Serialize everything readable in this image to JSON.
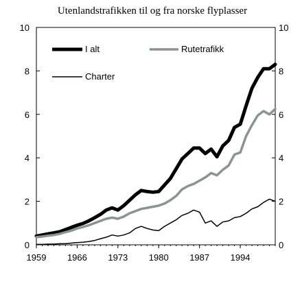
{
  "chart_data": {
    "type": "line",
    "title": "Utenlandstrafikken til og fra norske flyplasser",
    "xlabel": "",
    "ylabel": "",
    "xlim": [
      1959,
      2000
    ],
    "ylim": [
      0,
      10
    ],
    "x_ticks": [
      1959,
      1966,
      1973,
      1980,
      1987,
      1994
    ],
    "y_ticks": [
      0,
      2,
      4,
      6,
      8,
      10
    ],
    "y_ticks_right": [
      0,
      2,
      4,
      6,
      8,
      10
    ],
    "legend": "top-left",
    "grid": false,
    "x": [
      1959,
      1960,
      1961,
      1962,
      1963,
      1964,
      1965,
      1966,
      1967,
      1968,
      1969,
      1970,
      1971,
      1972,
      1973,
      1974,
      1975,
      1976,
      1977,
      1978,
      1979,
      1980,
      1981,
      1982,
      1983,
      1984,
      1985,
      1986,
      1987,
      1988,
      1989,
      1990,
      1991,
      1992,
      1993,
      1994,
      1995,
      1996,
      1997,
      1998,
      1999,
      2000
    ],
    "series": [
      {
        "name": "I alt",
        "color": "#000000",
        "width": 5,
        "values": [
          0.4,
          0.45,
          0.5,
          0.55,
          0.6,
          0.7,
          0.8,
          0.9,
          0.98,
          1.1,
          1.25,
          1.4,
          1.6,
          1.7,
          1.6,
          1.8,
          2.05,
          2.3,
          2.5,
          2.45,
          2.42,
          2.45,
          2.75,
          3.05,
          3.5,
          3.95,
          4.2,
          4.45,
          4.45,
          4.2,
          4.4,
          4.05,
          4.55,
          4.8,
          5.4,
          5.55,
          6.4,
          7.2,
          7.7,
          8.1,
          8.1,
          8.3
        ]
      },
      {
        "name": "Rutetrafikk",
        "color": "#8c9393",
        "width": 3.5,
        "values": [
          0.35,
          0.38,
          0.42,
          0.45,
          0.5,
          0.58,
          0.65,
          0.75,
          0.82,
          0.9,
          1.0,
          1.1,
          1.2,
          1.25,
          1.2,
          1.3,
          1.45,
          1.55,
          1.65,
          1.7,
          1.75,
          1.8,
          1.9,
          2.05,
          2.25,
          2.55,
          2.7,
          2.8,
          2.95,
          3.1,
          3.3,
          3.2,
          3.45,
          3.65,
          4.15,
          4.25,
          5.0,
          5.5,
          5.95,
          6.15,
          6.0,
          6.25
        ]
      },
      {
        "name": "Charter",
        "color": "#000000",
        "width": 1.5,
        "values": [
          0.02,
          0.02,
          0.03,
          0.03,
          0.05,
          0.05,
          0.08,
          0.1,
          0.12,
          0.15,
          0.2,
          0.28,
          0.35,
          0.45,
          0.4,
          0.45,
          0.55,
          0.75,
          0.85,
          0.75,
          0.68,
          0.65,
          0.85,
          1.0,
          1.15,
          1.35,
          1.45,
          1.6,
          1.5,
          1.0,
          1.1,
          0.85,
          1.05,
          1.1,
          1.25,
          1.3,
          1.45,
          1.65,
          1.75,
          1.95,
          2.1,
          2.0
        ]
      }
    ]
  }
}
